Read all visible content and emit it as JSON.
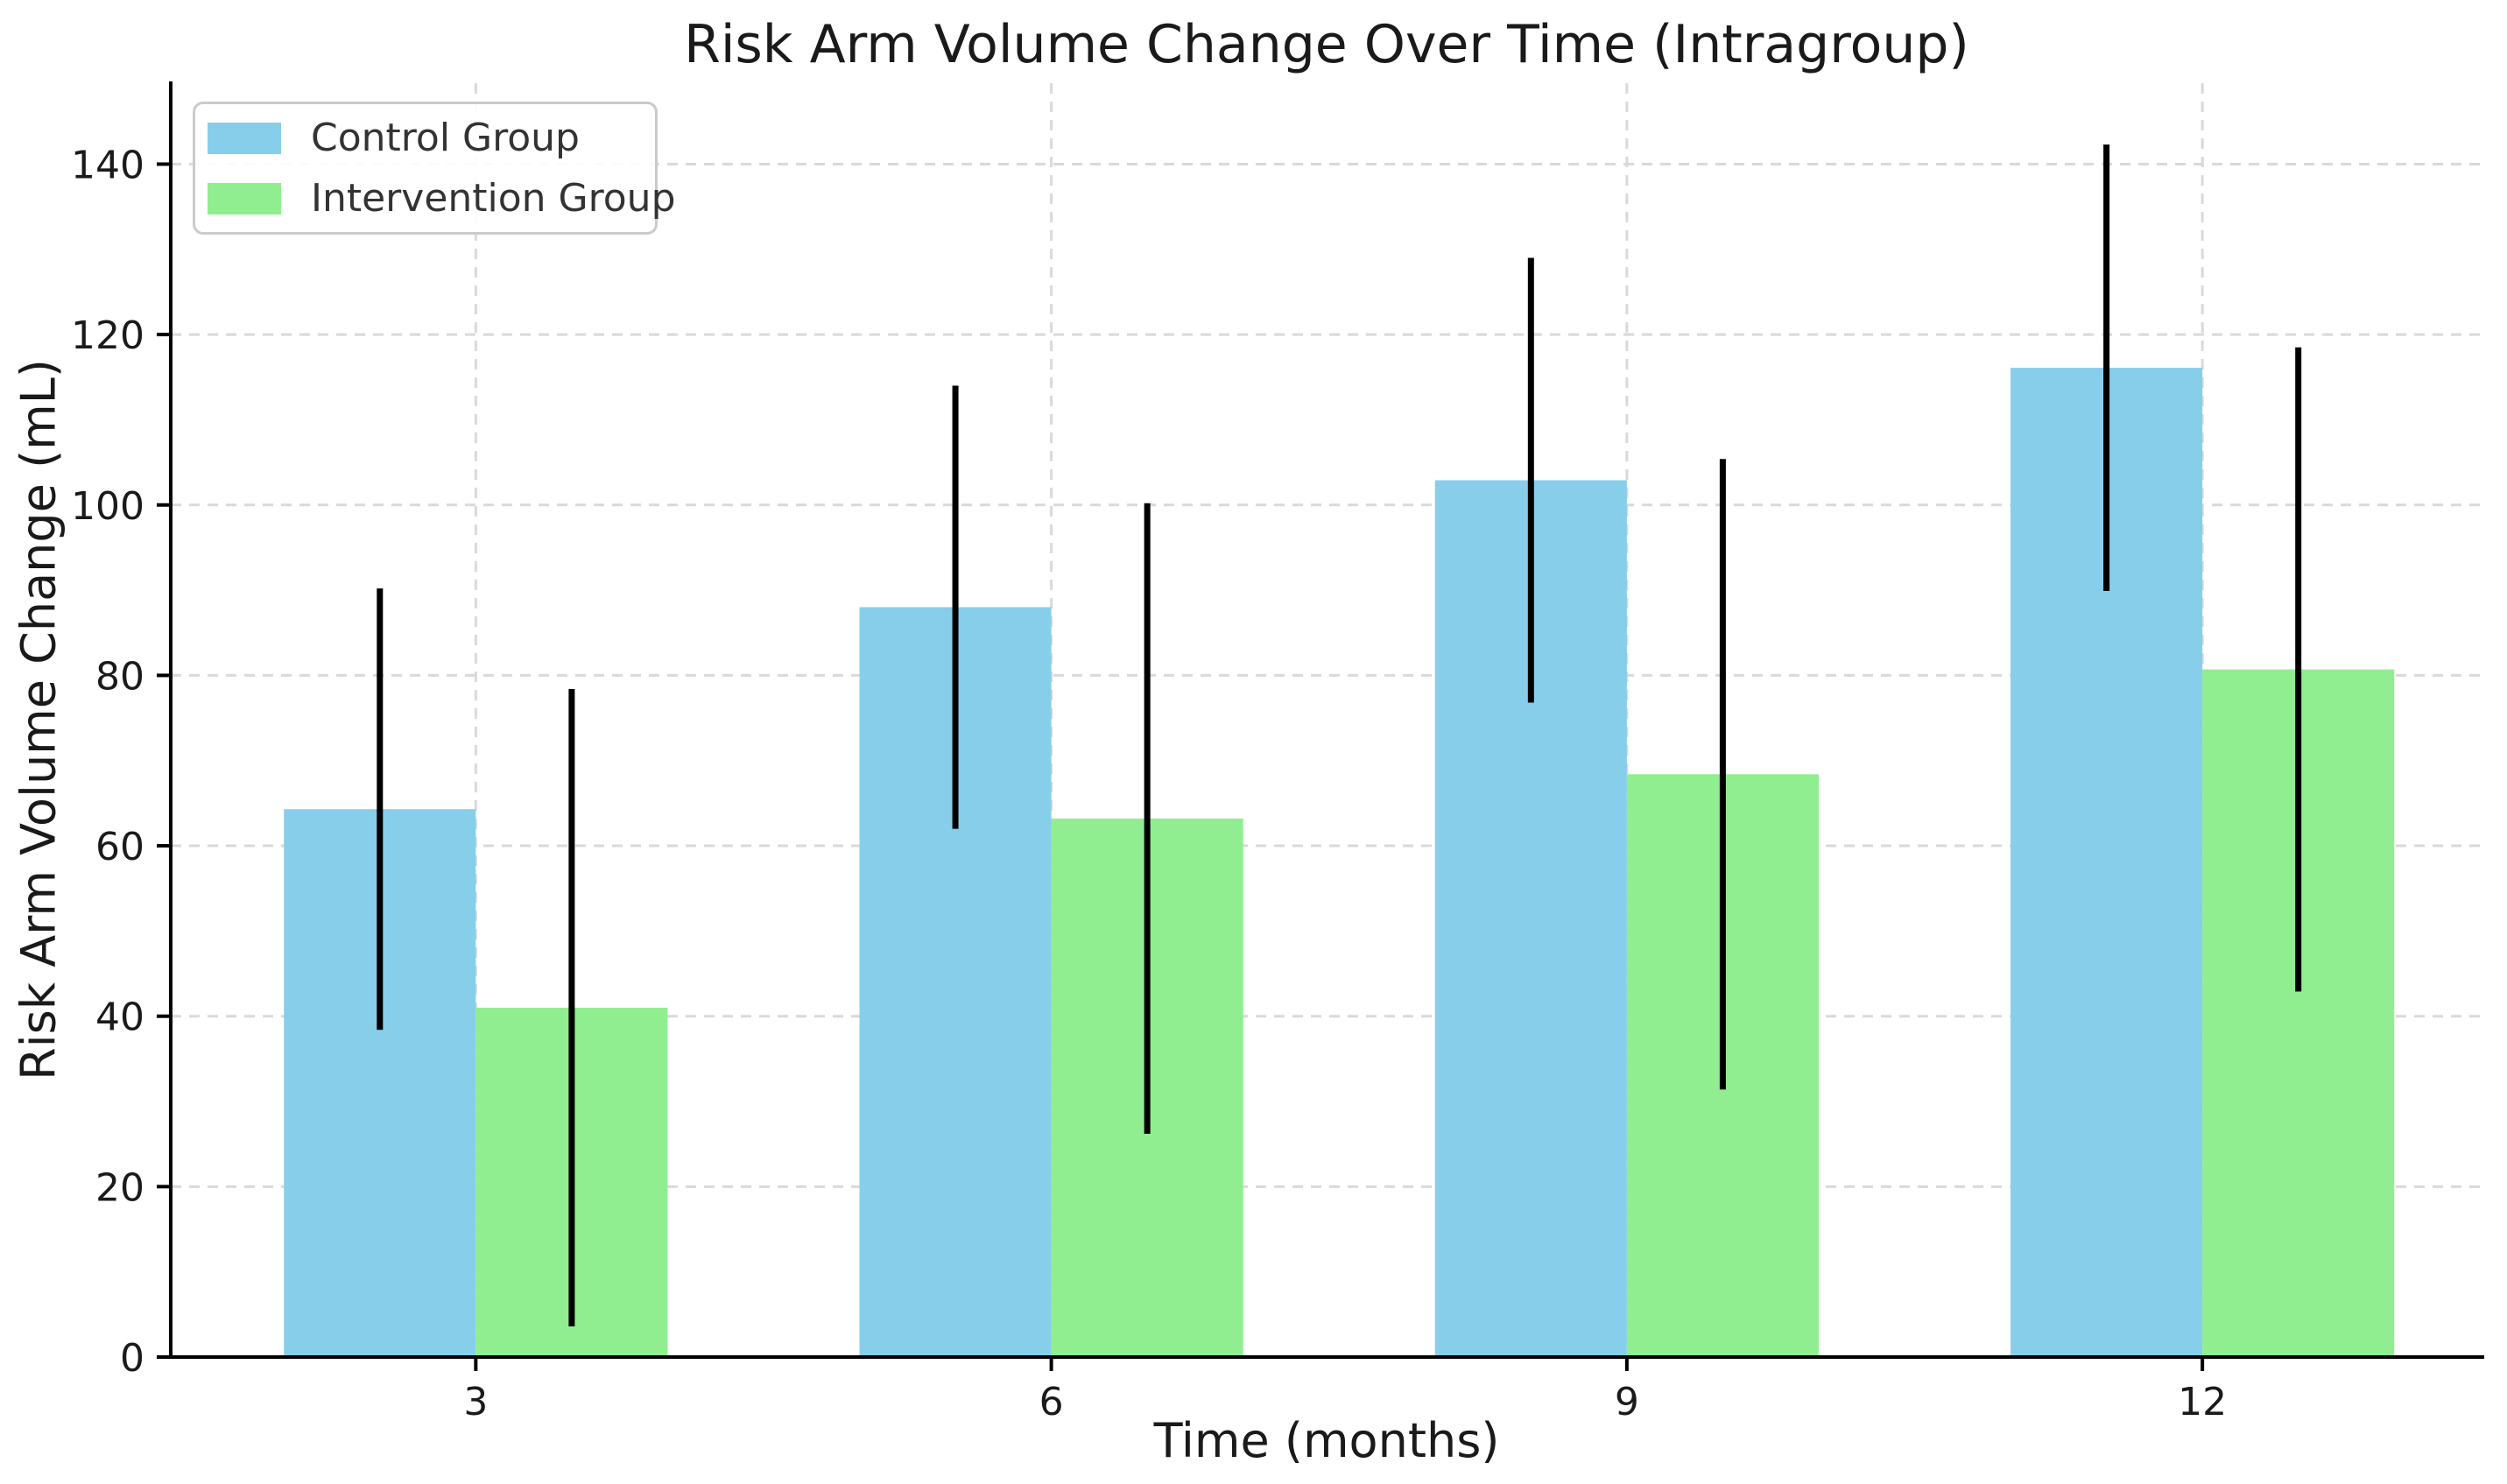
{
  "chart_data": {
    "type": "bar",
    "title": "Risk Arm Volume Change Over Time (Intragroup)",
    "xlabel": "Time (months)",
    "ylabel": "Risk Arm Volume Change (mL)",
    "categories": [
      3,
      6,
      9,
      12
    ],
    "series": [
      {
        "name": "Control Group",
        "color": "#87CEEB",
        "values": [
          64.3,
          88.0,
          102.9,
          116.1
        ],
        "errors": [
          25.9,
          26.0,
          26.1,
          26.2
        ]
      },
      {
        "name": "Intervention Group",
        "color": "#90EE90",
        "values": [
          41.0,
          63.2,
          68.4,
          80.7
        ],
        "errors": [
          37.4,
          37.0,
          37.0,
          37.8
        ]
      }
    ],
    "yticks": [
      0,
      20,
      40,
      60,
      80,
      100,
      120,
      140
    ],
    "ylim": [
      0,
      149.5
    ],
    "xlim": [
      1.41,
      13.46
    ],
    "bar_width_months": 1.0,
    "grid": true,
    "grid_style": "dashed",
    "legend_position": "upper left",
    "error_bar_color": "#000000",
    "background_color": "#ffffff"
  }
}
